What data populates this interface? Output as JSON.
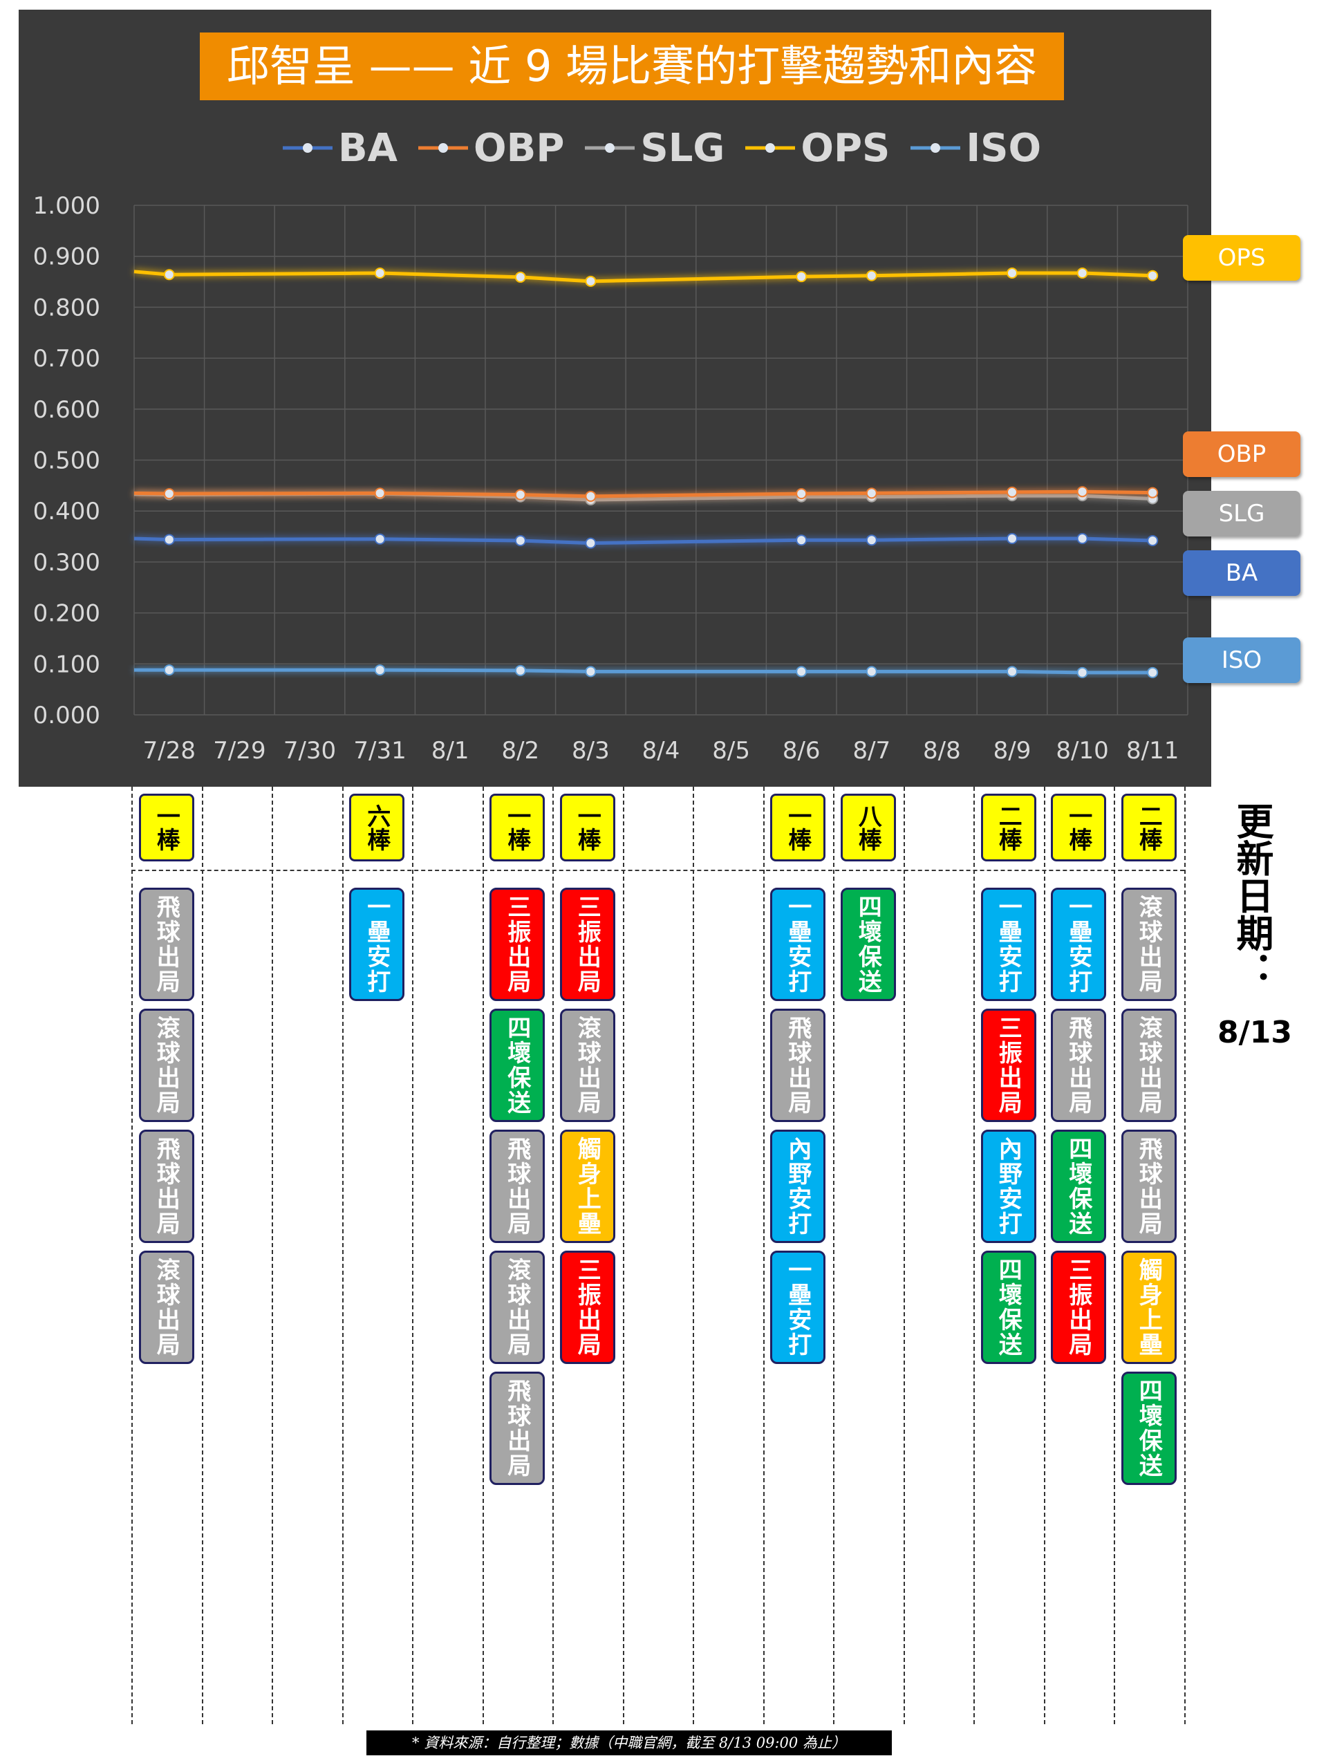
{
  "title": "邱智呈 —— 近 9 場比賽的打擊趨勢和內容",
  "legend": [
    {
      "key": "BA",
      "label": "BA",
      "color": "#4472c4"
    },
    {
      "key": "OBP",
      "label": "OBP",
      "color": "#ed7d31"
    },
    {
      "key": "SLG",
      "label": "SLG",
      "color": "#a5a5a5"
    },
    {
      "key": "OPS",
      "label": "OPS",
      "color": "#ffc000"
    },
    {
      "key": "ISO",
      "label": "ISO",
      "color": "#5b9bd5"
    }
  ],
  "side_labels": [
    {
      "key": "OPS",
      "label": "OPS",
      "color": "#ffc000"
    },
    {
      "key": "OBP",
      "label": "OBP",
      "color": "#ed7d31"
    },
    {
      "key": "SLG",
      "label": "SLG",
      "color": "#a5a5a5"
    },
    {
      "key": "BA",
      "label": "BA",
      "color": "#4472c4"
    },
    {
      "key": "ISO",
      "label": "ISO",
      "color": "#5b9bd5"
    }
  ],
  "chart_data": {
    "type": "line",
    "title": "邱智呈 —— 近 9 場比賽的打擊趨勢和內容",
    "x": [
      "7/28",
      "7/29",
      "7/30",
      "7/31",
      "8/1",
      "8/2",
      "8/3",
      "8/4",
      "8/5",
      "8/6",
      "8/7",
      "8/8",
      "8/9",
      "8/10",
      "8/11"
    ],
    "yticks": [
      "1.000",
      "0.900",
      "0.800",
      "0.700",
      "0.600",
      "0.500",
      "0.400",
      "0.300",
      "0.200",
      "0.100",
      "0.000"
    ],
    "ylim": [
      0,
      1
    ],
    "grid": true,
    "legend_position": "top",
    "series": [
      {
        "name": "BA",
        "color": "#4472c4",
        "start": 0.346,
        "values": [
          0.344,
          null,
          null,
          0.345,
          null,
          0.342,
          0.337,
          null,
          null,
          0.343,
          0.343,
          null,
          0.346,
          0.346,
          0.342
        ]
      },
      {
        "name": "OBP",
        "color": "#ed7d31",
        "start": 0.435,
        "values": [
          0.434,
          null,
          null,
          0.435,
          null,
          0.432,
          0.429,
          null,
          null,
          0.434,
          0.435,
          null,
          0.437,
          0.438,
          0.436
        ]
      },
      {
        "name": "SLG",
        "color": "#a5a5a5",
        "start": 0.433,
        "values": [
          0.432,
          null,
          null,
          0.434,
          null,
          0.428,
          0.422,
          null,
          null,
          0.428,
          0.428,
          null,
          0.43,
          0.43,
          0.424
        ]
      },
      {
        "name": "OPS",
        "color": "#ffc000",
        "start": 0.87,
        "values": [
          0.864,
          null,
          null,
          0.867,
          null,
          0.859,
          0.851,
          null,
          null,
          0.86,
          0.862,
          null,
          0.867,
          0.867,
          0.862
        ]
      },
      {
        "name": "ISO",
        "color": "#5b9bd5",
        "start": 0.088,
        "values": [
          0.088,
          null,
          null,
          0.088,
          null,
          0.087,
          0.085,
          null,
          null,
          0.085,
          0.085,
          null,
          0.085,
          0.083,
          0.083
        ]
      }
    ]
  },
  "games": [
    {
      "date": "7/28",
      "order": "一棒",
      "pas": [
        {
          "text": "飛球出局",
          "color": "#a6a6a6"
        },
        {
          "text": "滾球出局",
          "color": "#a6a6a6"
        },
        {
          "text": "飛球出局",
          "color": "#a6a6a6"
        },
        {
          "text": "滾球出局",
          "color": "#a6a6a6"
        }
      ]
    },
    {
      "date": "7/31",
      "order": "六棒",
      "pas": [
        {
          "text": "一壘安打",
          "color": "#00b0f0"
        }
      ]
    },
    {
      "date": "8/2",
      "order": "一棒",
      "pas": [
        {
          "text": "三振出局",
          "color": "#ff0000"
        },
        {
          "text": "四壞保送",
          "color": "#00b050"
        },
        {
          "text": "飛球出局",
          "color": "#a6a6a6"
        },
        {
          "text": "滾球出局",
          "color": "#a6a6a6"
        },
        {
          "text": "飛球出局",
          "color": "#a6a6a6"
        }
      ]
    },
    {
      "date": "8/3",
      "order": "一棒",
      "pas": [
        {
          "text": "三振出局",
          "color": "#ff0000"
        },
        {
          "text": "滾球出局",
          "color": "#a6a6a6"
        },
        {
          "text": "觸身上壘",
          "color": "#ffc000"
        },
        {
          "text": "三振出局",
          "color": "#ff0000"
        }
      ]
    },
    {
      "date": "8/6",
      "order": "一棒",
      "pas": [
        {
          "text": "一壘安打",
          "color": "#00b0f0"
        },
        {
          "text": "飛球出局",
          "color": "#a6a6a6"
        },
        {
          "text": "內野安打",
          "color": "#00b0f0"
        },
        {
          "text": "一壘安打",
          "color": "#00b0f0"
        }
      ]
    },
    {
      "date": "8/7",
      "order": "八棒",
      "pas": [
        {
          "text": "四壞保送",
          "color": "#00b050"
        }
      ]
    },
    {
      "date": "8/9",
      "order": "二棒",
      "pas": [
        {
          "text": "一壘安打",
          "color": "#00b0f0"
        },
        {
          "text": "三振出局",
          "color": "#ff0000"
        },
        {
          "text": "內野安打",
          "color": "#00b0f0"
        },
        {
          "text": "四壞保送",
          "color": "#00b050"
        }
      ]
    },
    {
      "date": "8/10",
      "order": "一棒",
      "pas": [
        {
          "text": "一壘安打",
          "color": "#00b0f0"
        },
        {
          "text": "飛球出局",
          "color": "#a6a6a6"
        },
        {
          "text": "四壞保送",
          "color": "#00b050"
        },
        {
          "text": "三振出局",
          "color": "#ff0000"
        }
      ]
    },
    {
      "date": "8/11",
      "order": "二棒",
      "pas": [
        {
          "text": "滾球出局",
          "color": "#a6a6a6"
        },
        {
          "text": "滾球出局",
          "color": "#a6a6a6"
        },
        {
          "text": "飛球出局",
          "color": "#a6a6a6"
        },
        {
          "text": "觸身上壘",
          "color": "#ffc000"
        },
        {
          "text": "四壞保送",
          "color": "#00b050"
        }
      ]
    }
  ],
  "update": {
    "label": "更新日期：",
    "date": "8/13"
  },
  "source_note": "* 資料來源：自行整理；數據（中職官網，截至 8/13 09:00 為止）"
}
